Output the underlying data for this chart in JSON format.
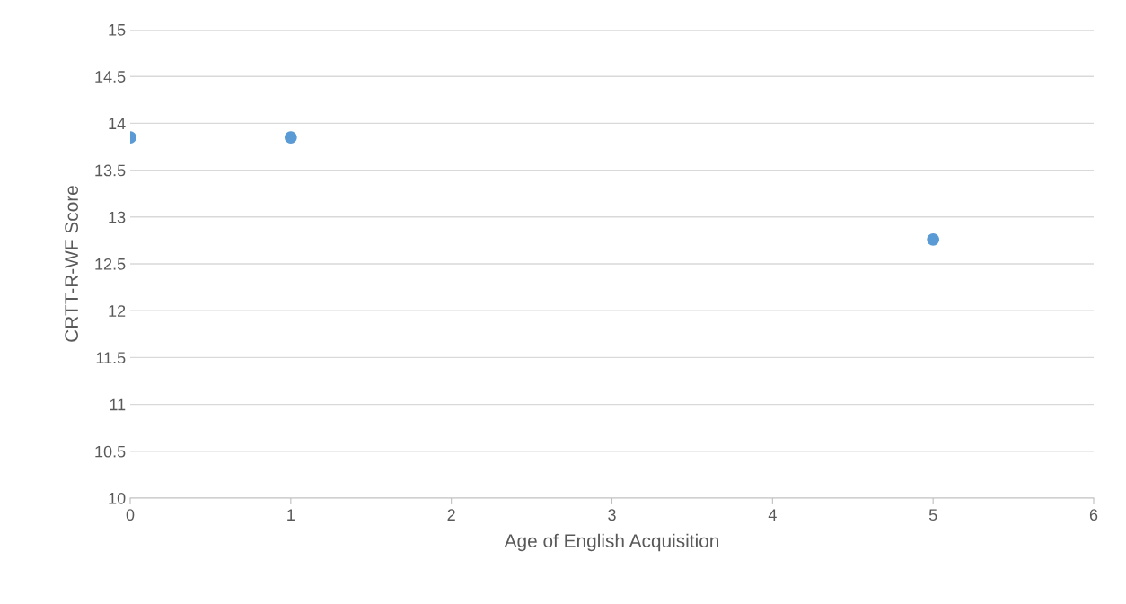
{
  "chart_data": {
    "type": "scatter",
    "xlabel": "Age of English Acquisition",
    "ylabel": "CRTT-R-WF Score",
    "x": [
      0,
      1,
      5
    ],
    "series": [
      {
        "color": "#5b9bd5",
        "values": [
          13.85,
          13.85,
          12.76
        ]
      }
    ],
    "xlim": [
      0,
      6
    ],
    "xticks": [
      0,
      1,
      2,
      3,
      4,
      5,
      6
    ],
    "ylim": [
      10,
      15
    ],
    "yticks": [
      10,
      10.5,
      11,
      11.5,
      12,
      12.5,
      13,
      13.5,
      14,
      14.5,
      15
    ],
    "grid": "y",
    "marker": "circle",
    "legend": false
  }
}
